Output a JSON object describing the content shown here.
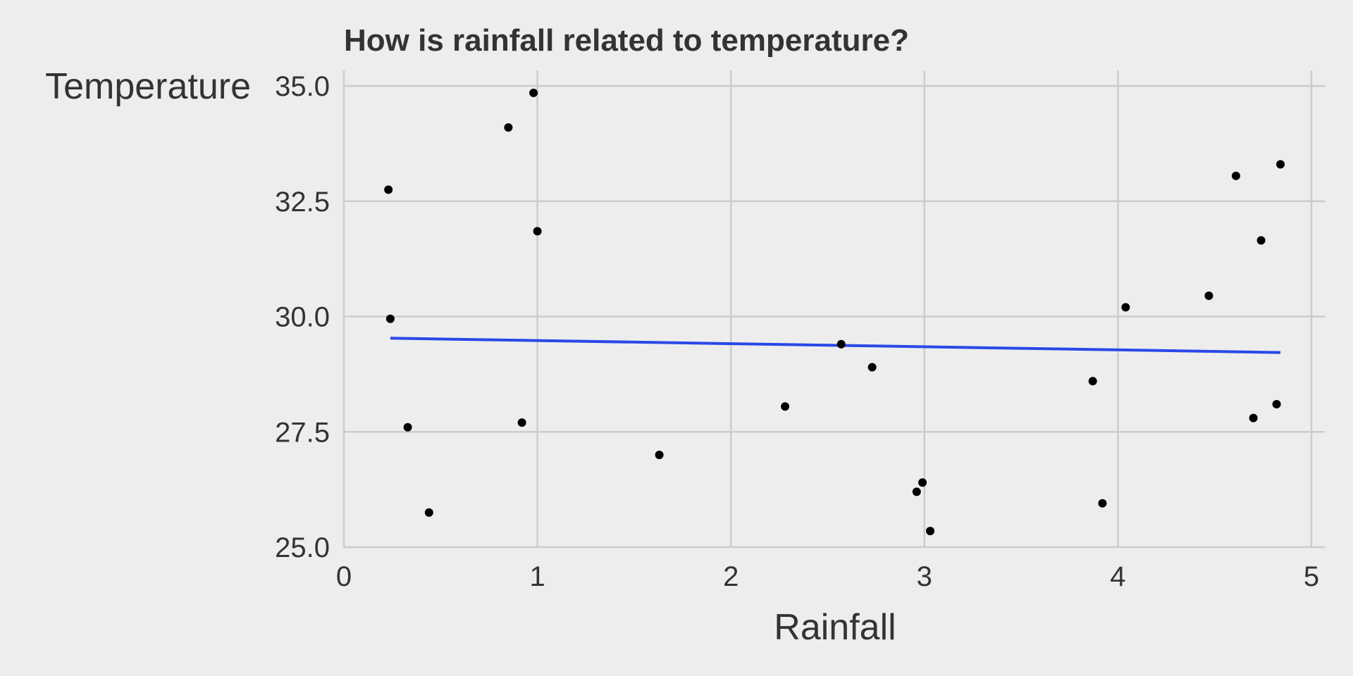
{
  "chart_data": {
    "type": "scatter",
    "title": "How is rainfall related to temperature?",
    "xlabel": "Rainfall",
    "ylabel": "Temperature",
    "xlim": [
      0,
      5
    ],
    "ylim": [
      25,
      35
    ],
    "x_ticks": [
      0,
      1,
      2,
      3,
      4,
      5
    ],
    "x_tick_labels": [
      "0",
      "1",
      "2",
      "3",
      "4",
      "5"
    ],
    "y_ticks": [
      25,
      27.5,
      30,
      32.5,
      35
    ],
    "y_tick_labels": [
      "25.0",
      "27.5",
      "30.0",
      "32.5",
      "35.0"
    ],
    "grid": true,
    "colors": {
      "background": "#ededed",
      "grid": "#cccccc",
      "points": "#000000",
      "trend_line": "#2a48e8",
      "text": "#333333"
    },
    "series": [
      {
        "x": [
          0.23,
          0.24,
          0.33,
          0.44,
          0.85,
          0.92,
          0.98,
          1.0,
          1.63,
          2.28,
          2.57,
          2.73,
          2.96,
          2.99,
          3.03,
          3.87,
          3.92,
          4.04,
          4.47,
          4.61,
          4.7,
          4.74,
          4.82,
          4.84
        ],
        "y": [
          32.75,
          29.95,
          27.6,
          25.75,
          34.1,
          27.7,
          34.85,
          31.85,
          27.0,
          28.05,
          29.4,
          28.9,
          26.2,
          26.4,
          25.35,
          28.6,
          25.95,
          30.2,
          30.45,
          33.05,
          27.8,
          31.65,
          28.1,
          33.3
        ]
      }
    ],
    "trend_line": {
      "x": [
        0.24,
        4.84
      ],
      "y": [
        29.53,
        29.22
      ]
    }
  }
}
